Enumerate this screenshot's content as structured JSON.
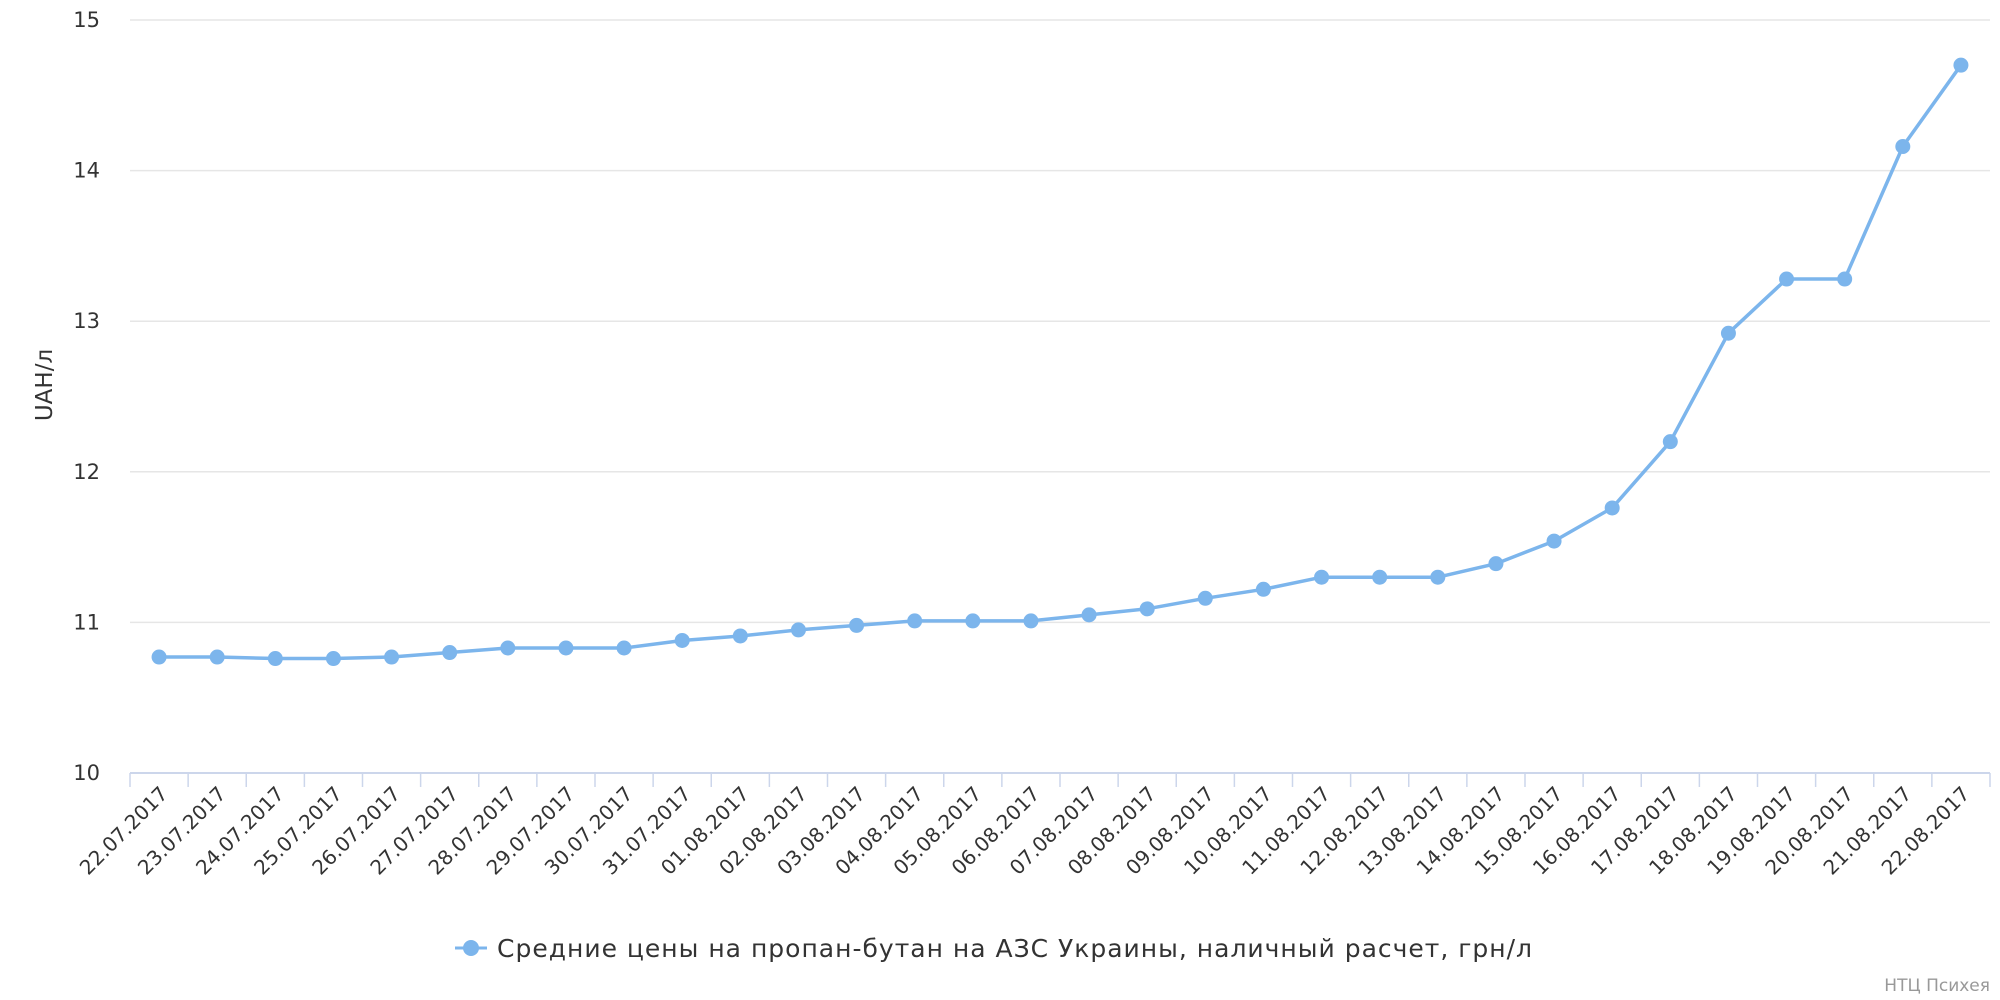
{
  "chart_data": {
    "type": "line",
    "ylabel": "UAH/л",
    "ylim": [
      10,
      15
    ],
    "yticks": [
      "10",
      "11",
      "12",
      "13",
      "14",
      "15"
    ],
    "grid": true,
    "legend_position": "bottom-center",
    "categories": [
      "22.07.2017",
      "23.07.2017",
      "24.07.2017",
      "25.07.2017",
      "26.07.2017",
      "27.07.2017",
      "28.07.2017",
      "29.07.2017",
      "30.07.2017",
      "31.07.2017",
      "01.08.2017",
      "02.08.2017",
      "03.08.2017",
      "04.08.2017",
      "05.08.2017",
      "06.08.2017",
      "07.08.2017",
      "08.08.2017",
      "09.08.2017",
      "10.08.2017",
      "11.08.2017",
      "12.08.2017",
      "13.08.2017",
      "14.08.2017",
      "15.08.2017",
      "16.08.2017",
      "17.08.2017",
      "18.08.2017",
      "19.08.2017",
      "20.08.2017",
      "21.08.2017",
      "22.08.2017"
    ],
    "series": [
      {
        "name": "Средние цены на пропан-бутан на АЗС Украины, наличный расчет, грн/л",
        "color": "#7cb5ec",
        "values": [
          10.77,
          10.77,
          10.76,
          10.76,
          10.77,
          10.8,
          10.83,
          10.83,
          10.83,
          10.88,
          10.91,
          10.95,
          10.98,
          11.01,
          11.01,
          11.01,
          11.05,
          11.09,
          11.16,
          11.22,
          11.3,
          11.3,
          11.3,
          11.39,
          11.54,
          11.76,
          12.2,
          12.92,
          13.28,
          13.28,
          14.16,
          14.7
        ]
      }
    ]
  },
  "credits": "НТЦ Психея",
  "colors": {
    "series": "#7cb5ec",
    "grid": "#e6e6e6",
    "axis": "#ccd6eb",
    "text": "#333333",
    "credits": "#999999"
  }
}
